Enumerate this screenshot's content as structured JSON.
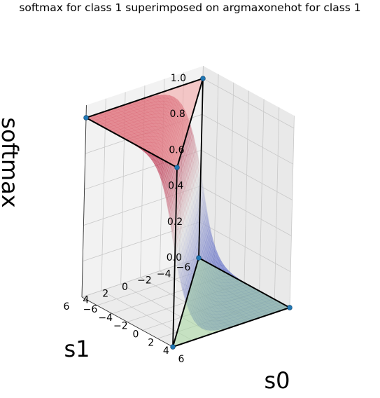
{
  "chart_data": {
    "type": "surface3d",
    "title": "softmax for class 1 superimposed on argmaxonehot for class 1",
    "xlabel": "s0",
    "ylabel": "s1",
    "zlabel": "softmax",
    "xlim": [
      -6,
      6
    ],
    "ylim": [
      -6,
      6
    ],
    "zlim": [
      0,
      1
    ],
    "x_ticks": [
      "−6",
      "−4",
      "−2",
      "0",
      "2",
      "4",
      "6"
    ],
    "y_ticks": [
      "−6",
      "−4",
      "−2",
      "0",
      "2",
      "4",
      "6"
    ],
    "z_ticks": [
      "0.0",
      "0.2",
      "0.4",
      "0.6",
      "0.8",
      "1.0"
    ],
    "grid": true,
    "series": [
      {
        "kind": "surface",
        "function": "softmax_class1",
        "value_at": {
          "s1_greater": 1.0,
          "s0_equals_s1": 0.5,
          "s0_greater": 0.0
        },
        "colormap": "coolwarm"
      },
      {
        "kind": "plane",
        "z": 1.0,
        "corners_s0_s1": [
          [
            -6,
            -6
          ],
          [
            6,
            6
          ],
          [
            -6,
            6
          ]
        ],
        "fill_color": "#f4a3a3",
        "edge_color": "#000000"
      },
      {
        "kind": "plane",
        "z": 0.0,
        "corners_s0_s1": [
          [
            6,
            6
          ],
          [
            -6,
            -6
          ],
          [
            6,
            -6
          ]
        ],
        "fill_color": "#a8d8a0",
        "edge_color": "#000000"
      },
      {
        "kind": "points",
        "points_s0_s1_z": [
          [
            6,
            -6,
            0
          ],
          [
            -6,
            -6,
            0
          ],
          [
            6,
            6,
            0
          ],
          [
            -6,
            -6,
            1
          ],
          [
            -6,
            6,
            1
          ],
          [
            6,
            6,
            1
          ]
        ],
        "color": "#1f77b4"
      }
    ]
  }
}
